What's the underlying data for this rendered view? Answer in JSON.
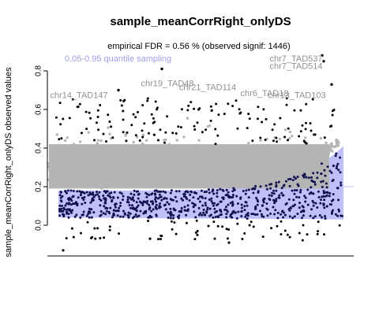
{
  "chart_data": {
    "type": "scatter",
    "title": "sample_meanCorrRight_onlyDS",
    "subtitle": "empirical FDR = 0.56 % (observed signif: 1446)",
    "legend_text": "0.05-0.95 quantile sampling",
    "ylabel": "sample_meanCorrRight_onlyDS observed values",
    "xlabel": "",
    "ylim": [
      -0.17,
      0.92
    ],
    "yticks": [
      0.0,
      0.2,
      0.4,
      0.6,
      0.8
    ],
    "ytick_labels": [
      "0.0",
      "0.2",
      "0.4",
      "0.6",
      "0.8"
    ],
    "colors": {
      "sampling_band": "#c0c0f8",
      "non_significant": "#b4b4b4",
      "significant_in_band": "#101050",
      "significant_outside": "#000000",
      "annotation": "#909090",
      "legend": "#9f9fe6"
    },
    "sampling_band_rough": {
      "lower_start": 0.04,
      "lower_end": 0.03,
      "upper_start": 0.18,
      "upper_end": 0.41
    },
    "series_note": "observed values per TAD sorted by sampling band; points above band in gray, points inside band dark",
    "annotations": [
      {
        "label": "chr7_TAD537",
        "y": 0.85
      },
      {
        "label": "chr7_TAD514",
        "y": 0.81
      },
      {
        "label": "chr19_TAD48",
        "y": 0.72
      },
      {
        "label": "chr21_TAD114",
        "y": 0.7
      },
      {
        "label": "chr14_TAD147",
        "y": 0.66
      },
      {
        "label": "chr6_TAD18",
        "y": 0.67
      },
      {
        "label": "chr13_TAD103",
        "y": 0.66
      }
    ]
  }
}
